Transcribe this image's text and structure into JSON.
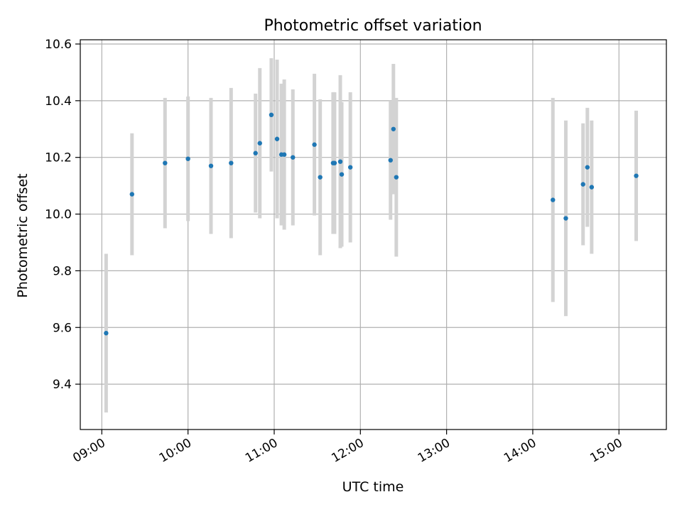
{
  "chart_data": {
    "type": "scatter",
    "title": "Photometric offset variation",
    "xlabel": "UTC time",
    "ylabel": "Photometric offset",
    "x_tick_labels": [
      "09:00",
      "10:00",
      "11:00",
      "12:00",
      "13:00",
      "14:00",
      "15:00"
    ],
    "y_tick_labels": [
      "9.4",
      "9.6",
      "9.8",
      "10.0",
      "10.2",
      "10.4",
      "10.6"
    ],
    "grid": true,
    "colors": {
      "marker": "#1f77b4",
      "errorbar": "#d3d3d3",
      "grid": "#b0b0b0"
    },
    "series": [
      {
        "x": [
          "09:03",
          "09:21",
          "09:44",
          "10:00",
          "10:16",
          "10:30",
          "10:47",
          "10:50",
          "10:58",
          "11:02",
          "11:05",
          "11:07",
          "11:13",
          "11:28",
          "11:32",
          "11:41",
          "11:42",
          "11:46",
          "11:47",
          "11:53",
          "12:21",
          "12:23",
          "12:25",
          "14:14",
          "14:23",
          "14:35",
          "14:38",
          "14:41",
          "15:12"
        ],
        "y": [
          9.58,
          10.07,
          10.18,
          10.195,
          10.17,
          10.18,
          10.215,
          10.25,
          10.35,
          10.265,
          10.21,
          10.21,
          10.2,
          10.245,
          10.13,
          10.18,
          10.18,
          10.185,
          10.14,
          10.165,
          10.19,
          10.3,
          10.13,
          10.05,
          9.985,
          10.105,
          10.165,
          10.095,
          10.135
        ],
        "err": [
          0.28,
          0.215,
          0.23,
          0.22,
          0.24,
          0.265,
          0.21,
          0.265,
          0.2,
          0.28,
          0.25,
          0.265,
          0.24,
          0.25,
          0.275,
          0.25,
          0.25,
          0.305,
          0.255,
          0.265,
          0.21,
          0.23,
          0.28,
          0.36,
          0.345,
          0.215,
          0.21,
          0.235,
          0.23
        ]
      }
    ]
  }
}
